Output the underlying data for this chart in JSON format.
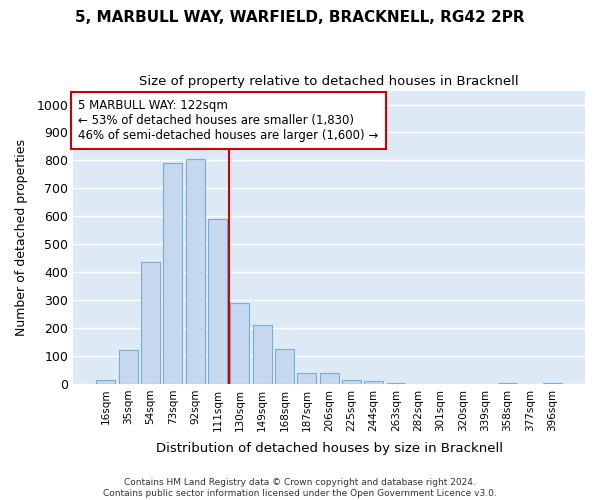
{
  "title": "5, MARBULL WAY, WARFIELD, BRACKNELL, RG42 2PR",
  "subtitle": "Size of property relative to detached houses in Bracknell",
  "xlabel": "Distribution of detached houses by size in Bracknell",
  "ylabel": "Number of detached properties",
  "categories": [
    "16sqm",
    "35sqm",
    "54sqm",
    "73sqm",
    "92sqm",
    "111sqm",
    "130sqm",
    "149sqm",
    "168sqm",
    "187sqm",
    "206sqm",
    "225sqm",
    "244sqm",
    "263sqm",
    "282sqm",
    "301sqm",
    "320sqm",
    "339sqm",
    "358sqm",
    "377sqm",
    "396sqm"
  ],
  "values": [
    15,
    120,
    435,
    790,
    805,
    590,
    290,
    210,
    125,
    40,
    40,
    15,
    10,
    5,
    0,
    0,
    0,
    0,
    5,
    0,
    5
  ],
  "bar_color": "#c5d8ee",
  "bar_edge_color": "#7aadd4",
  "fig_background_color": "#ffffff",
  "plot_background_color": "#ddeaf6",
  "grid_color": "#ffffff",
  "annotation_text": "5 MARBULL WAY: 122sqm\n← 53% of detached houses are smaller (1,830)\n46% of semi-detached houses are larger (1,600) →",
  "annotation_box_color": "#ffffff",
  "annotation_box_edge": "#cc0000",
  "vline_x": 5.5,
  "vline_color": "#cc0000",
  "footer_line1": "Contains HM Land Registry data © Crown copyright and database right 2024.",
  "footer_line2": "Contains public sector information licensed under the Open Government Licence v3.0.",
  "ylim": [
    0,
    1050
  ],
  "yticks": [
    0,
    100,
    200,
    300,
    400,
    500,
    600,
    700,
    800,
    900,
    1000
  ]
}
